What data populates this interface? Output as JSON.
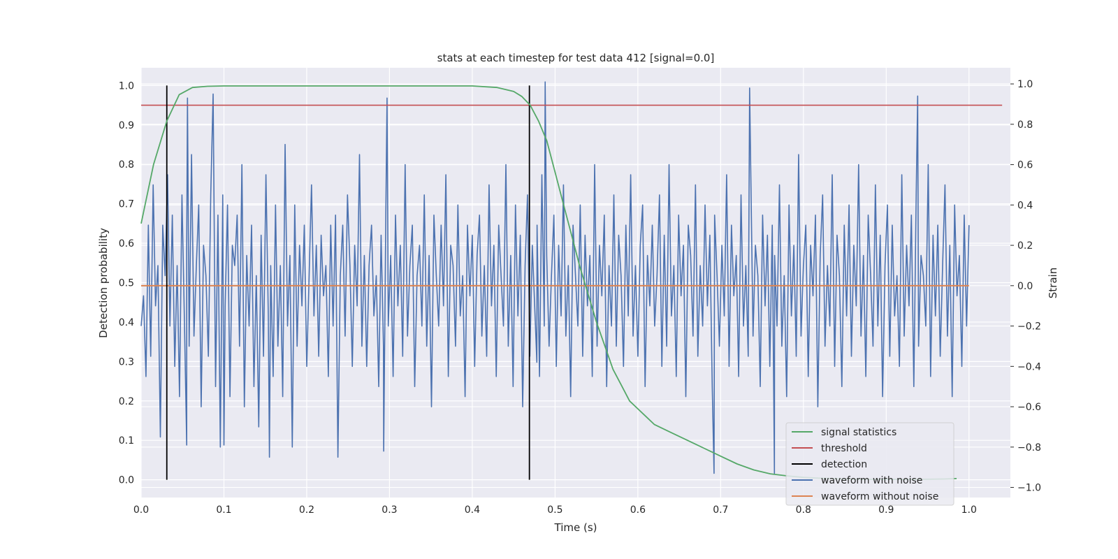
{
  "chart_data": {
    "type": "line",
    "title": "stats at each timestep for test data 412 [signal=0.0]",
    "xlabel": "Time (s)",
    "ylabel": "Detection probability",
    "y2label": "Strain",
    "xlim": [
      0.0,
      1.05
    ],
    "ylim": [
      -0.045,
      1.045
    ],
    "y2lim": [
      -1.05,
      1.08
    ],
    "xticks": [
      "0.0",
      "0.1",
      "0.2",
      "0.3",
      "0.4",
      "0.5",
      "0.6",
      "0.7",
      "0.8",
      "0.9",
      "1.0"
    ],
    "yticks": [
      "0.0",
      "0.1",
      "0.2",
      "0.3",
      "0.4",
      "0.5",
      "0.6",
      "0.7",
      "0.8",
      "0.9",
      "1.0"
    ],
    "y2ticks": [
      "−1.0",
      "−0.8",
      "−0.6",
      "−0.4",
      "−0.2",
      "0.0",
      "0.2",
      "0.4",
      "0.6",
      "0.8",
      "1.0"
    ],
    "grid": true,
    "legend_position": "lower right",
    "legend": [
      {
        "label": "signal statistics",
        "color": "#55a868"
      },
      {
        "label": "threshold",
        "color": "#c44e52"
      },
      {
        "label": "detection",
        "color": "#000000"
      },
      {
        "label": "waveform with noise",
        "color": "#4c72b0"
      },
      {
        "label": "waveform without noise",
        "color": "#dd8452"
      }
    ],
    "series": [
      {
        "name": "signal statistics",
        "axis": "left",
        "color": "#55a868",
        "x": [
          0.0,
          0.015,
          0.031,
          0.046,
          0.062,
          0.08,
          0.1,
          0.2,
          0.3,
          0.4,
          0.43,
          0.45,
          0.46,
          0.47,
          0.48,
          0.49,
          0.5,
          0.51,
          0.52,
          0.53,
          0.54,
          0.55,
          0.56,
          0.57,
          0.58,
          0.59,
          0.6,
          0.61,
          0.62,
          0.64,
          0.66,
          0.68,
          0.7,
          0.72,
          0.74,
          0.76,
          0.78,
          0.8,
          0.82,
          0.85,
          0.88,
          0.91,
          0.94,
          0.97,
          0.985
        ],
        "y": [
          0.65,
          0.8,
          0.91,
          0.977,
          0.995,
          0.998,
          0.999,
          0.999,
          0.999,
          0.999,
          0.995,
          0.985,
          0.972,
          0.95,
          0.91,
          0.86,
          0.78,
          0.7,
          0.62,
          0.54,
          0.47,
          0.4,
          0.34,
          0.28,
          0.24,
          0.2,
          0.18,
          0.16,
          0.14,
          0.12,
          0.1,
          0.08,
          0.06,
          0.04,
          0.025,
          0.015,
          0.01,
          0.006,
          0.004,
          0.002,
          0.001,
          0.001,
          0.001,
          0.002,
          0.003
        ]
      },
      {
        "name": "threshold",
        "axis": "left",
        "color": "#c44e52",
        "x": [
          0.0,
          1.04
        ],
        "y": [
          0.95,
          0.95
        ]
      },
      {
        "name": "detection",
        "axis": "left",
        "color": "#000000",
        "segments": [
          {
            "x": 0.031,
            "y": [
              0.0,
              1.0
            ]
          },
          {
            "x": 0.469,
            "y": [
              0.0,
              1.0
            ]
          }
        ]
      },
      {
        "name": "waveform with noise",
        "axis": "right",
        "color": "#4c72b0",
        "x_start": 0.0,
        "x_end": 1.0,
        "values": [
          -0.2,
          -0.05,
          -0.45,
          0.3,
          -0.35,
          0.5,
          -0.1,
          0.1,
          -0.75,
          0.3,
          0.05,
          0.55,
          -0.2,
          0.35,
          -0.4,
          0.1,
          -0.55,
          0.45,
          -0.15,
          0.2,
          -0.3,
          0.65,
          -0.25,
          0.1,
          0.4,
          -0.6,
          0.2,
          0.05,
          -0.35,
          0.45,
          0.95,
          -0.5,
          0.35,
          -0.8,
          0.45,
          -0.1,
          0.4,
          -0.55,
          0.2,
          0.1,
          0.35,
          -0.3,
          0.6,
          -0.6,
          0.15,
          -0.2,
          0.3,
          -0.5,
          0.05,
          -0.7,
          0.25,
          -0.35,
          0.55,
          -0.15,
          0.1,
          -0.45,
          0.4,
          -0.3,
          0.1,
          -0.55,
          0.7,
          -0.2,
          0.15,
          -0.8,
          0.4,
          -0.3,
          0.2,
          -0.1,
          0.3,
          -0.4,
          0.05,
          0.5,
          -0.15,
          0.2,
          -0.35,
          0.25,
          -0.05,
          0.1,
          -0.45,
          0.3,
          -0.2,
          0.35,
          -0.85,
          0.05,
          0.3,
          -0.25,
          0.45,
          0.1,
          -0.4,
          0.2,
          -0.1,
          0.65,
          -0.3,
          0.15,
          -0.4,
          0.1,
          0.3,
          -0.15,
          0.05,
          -0.5,
          0.25,
          -0.3,
          0.4,
          -0.2,
          0.15,
          -0.45,
          0.35,
          -0.1,
          0.2,
          -0.35,
          0.6,
          -0.25,
          0.1,
          0.3,
          -0.5,
          0.05,
          0.2,
          -0.2,
          0.45,
          -0.3,
          0.15,
          -0.6,
          0.35,
          0.05,
          -0.2,
          0.3,
          -0.1,
          0.55,
          -0.45,
          0.2,
          0.1,
          -0.3,
          0.4,
          -0.15,
          0.05,
          -0.55,
          0.3,
          -0.05,
          0.25,
          -0.4,
          0.15,
          0.35,
          -0.25,
          0.1,
          -0.35,
          0.5,
          -0.1,
          0.2,
          -0.45,
          0.3,
          0.05,
          -0.2,
          0.6,
          -0.3,
          0.15,
          -0.5,
          0.4,
          -0.15,
          0.25,
          -0.6,
          0.1,
          0.45,
          -0.35,
          0.2,
          -0.1,
          0.3,
          -0.45,
          0.55,
          -0.2,
          0.15,
          -0.3,
          0.05,
          0.35,
          -0.4,
          0.2,
          -0.15,
          0.5,
          -0.25,
          0.1,
          -0.55,
          0.3,
          0.05,
          -0.2,
          0.4,
          -0.35,
          0.25,
          -0.1,
          0.15,
          -0.45,
          0.6,
          -0.3,
          0.2,
          -0.05,
          0.35,
          -0.5,
          0.1,
          -0.2,
          0.45,
          -0.3,
          0.25,
          0.05,
          -0.4,
          0.3,
          -0.15,
          0.55,
          -0.25,
          0.1,
          -0.35,
          0.2,
          0.4,
          -0.5,
          0.15,
          -0.1,
          0.3,
          -0.2,
          0.05,
          0.45,
          -0.4,
          0.25,
          -0.3,
          0.6,
          -0.15,
          0.1,
          -0.45,
          0.35,
          -0.05,
          0.2,
          -0.55,
          0.3,
          0.15,
          -0.25,
          0.5,
          -0.35,
          0.1,
          -0.2,
          0.4,
          -0.1,
          0.25,
          -0.5,
          0.35,
          0.05,
          -0.3,
          0.2,
          -0.15,
          0.55,
          -0.4,
          0.3,
          -0.05,
          0.15,
          -0.45,
          0.45,
          -0.2,
          0.1,
          -0.35,
          0.6,
          -0.25,
          0.2,
          0.05,
          -0.5,
          0.35,
          -0.1,
          0.25,
          -0.4,
          0.3,
          0.15,
          -0.2,
          0.5,
          -0.3,
          0.05,
          -0.55,
          0.4,
          -0.15,
          0.2,
          -0.35,
          0.65,
          -0.25,
          0.1,
          0.3,
          -0.45,
          0.2,
          -0.05,
          0.35,
          -0.6,
          0.15,
          0.45,
          -0.3,
          0.1,
          -0.2,
          0.55,
          -0.4,
          0.25,
          0.05,
          -0.5,
          0.3,
          -0.15,
          0.4,
          -0.35,
          0.2,
          -0.1,
          0.6,
          -0.25,
          0.15,
          -0.45,
          0.35,
          0.05,
          -0.3,
          0.5,
          -0.2,
          0.25,
          -0.55,
          0.1,
          0.4,
          -0.35,
          0.3,
          -0.15,
          0.05,
          -0.4,
          0.55,
          -0.25,
          0.2,
          -0.1,
          0.35,
          -0.5,
          0.45,
          -0.3,
          0.15,
          0.05,
          -0.2,
          0.6,
          -0.45,
          0.25,
          -0.15,
          0.3,
          -0.35,
          0.1,
          0.5,
          -0.25,
          0.2,
          -0.55,
          0.4,
          -0.05,
          0.15,
          -0.4,
          0.35,
          -0.2,
          0.3
        ],
        "spikes": [
          {
            "x": 0.056,
            "y": 0.93
          },
          {
            "x": 0.055,
            "y": -0.79
          },
          {
            "x": 0.1,
            "y": -0.79
          },
          {
            "x": 0.155,
            "y": -0.85
          },
          {
            "x": 0.297,
            "y": 0.93
          },
          {
            "x": 0.293,
            "y": -0.82
          },
          {
            "x": 0.488,
            "y": 1.01
          },
          {
            "x": 0.478,
            "y": -0.38
          },
          {
            "x": 0.692,
            "y": -0.93
          },
          {
            "x": 0.735,
            "y": 0.98
          },
          {
            "x": 0.765,
            "y": -0.93
          },
          {
            "x": 0.938,
            "y": 0.94
          }
        ]
      },
      {
        "name": "waveform without noise",
        "axis": "right",
        "color": "#dd8452",
        "x": [
          0.0,
          1.0
        ],
        "y": [
          0.0,
          0.0
        ]
      }
    ]
  }
}
